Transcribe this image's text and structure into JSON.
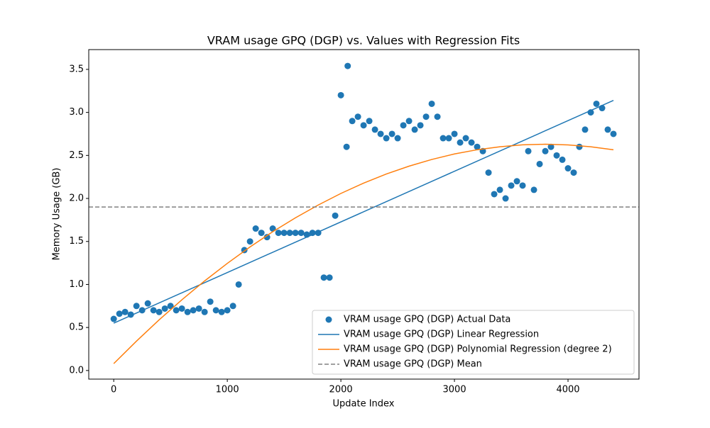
{
  "chart_data": {
    "type": "scatter",
    "title": "VRAM usage GPQ (DGP) vs. Values with Regression Fits",
    "x_label": "Update Index",
    "y_label": "Memory Usage (GB)",
    "xlim": [
      -220,
      4625
    ],
    "ylim": [
      -0.1,
      3.73
    ],
    "xticks": [
      0,
      1000,
      2000,
      3000,
      4000
    ],
    "yticks": [
      {
        "value": 0,
        "label": "0.0"
      },
      0.5,
      {
        "value": 1,
        "label": "1.0"
      },
      1.5,
      {
        "value": 2,
        "label": "2.0"
      },
      2.5,
      {
        "value": 3,
        "label": "3.0"
      },
      3.5
    ],
    "legend": "lower right",
    "series": [
      {
        "name": "VRAM usage GPQ (DGP) Actual Data",
        "type": "scatter",
        "color": "#1f77b4",
        "x": [
          0,
          50,
          100,
          150,
          200,
          250,
          300,
          350,
          400,
          450,
          500,
          550,
          600,
          650,
          700,
          750,
          800,
          850,
          900,
          950,
          1000,
          1050,
          1100,
          1150,
          1200,
          1250,
          1300,
          1350,
          1400,
          1450,
          1500,
          1550,
          1600,
          1650,
          1700,
          1750,
          1800,
          1850,
          1900,
          1950,
          2000,
          2050,
          2060,
          2100,
          2150,
          2200,
          2250,
          2300,
          2350,
          2400,
          2450,
          2500,
          2550,
          2600,
          2650,
          2700,
          2750,
          2800,
          2850,
          2900,
          2950,
          3000,
          3050,
          3100,
          3150,
          3200,
          3250,
          3300,
          3350,
          3400,
          3450,
          3500,
          3550,
          3600,
          3650,
          3700,
          3750,
          3800,
          3850,
          3900,
          3950,
          4000,
          4050,
          4100,
          4150,
          4200,
          4250,
          4300,
          4350,
          4400
        ],
        "values": [
          0.6,
          0.66,
          0.68,
          0.65,
          0.75,
          0.7,
          0.78,
          0.7,
          0.68,
          0.72,
          0.75,
          0.7,
          0.72,
          0.68,
          0.7,
          0.72,
          0.68,
          0.8,
          0.7,
          0.68,
          0.7,
          0.75,
          1.0,
          1.4,
          1.5,
          1.65,
          1.6,
          1.55,
          1.65,
          1.6,
          1.6,
          1.6,
          1.6,
          1.6,
          1.58,
          1.6,
          1.6,
          1.08,
          1.08,
          1.8,
          3.2,
          2.6,
          3.54,
          2.9,
          2.95,
          2.85,
          2.9,
          2.8,
          2.75,
          2.7,
          2.75,
          2.7,
          2.85,
          2.9,
          2.8,
          2.85,
          2.95,
          3.1,
          2.95,
          2.7,
          2.7,
          2.75,
          2.65,
          2.7,
          2.65,
          2.6,
          2.55,
          2.3,
          2.05,
          2.1,
          2.0,
          2.15,
          2.2,
          2.15,
          2.55,
          2.1,
          2.4,
          2.55,
          2.6,
          2.5,
          2.45,
          2.35,
          2.3,
          2.6,
          2.8,
          3.0,
          3.1,
          3.05,
          2.8,
          2.75
        ]
      },
      {
        "name": "VRAM usage GPQ (DGP) Linear Regression",
        "type": "line",
        "color": "#1f77b4",
        "x": [
          0,
          4400
        ],
        "values": [
          0.55,
          3.14
        ]
      },
      {
        "name": "VRAM usage GPQ (DGP) Polynomial Regression (degree 2)",
        "type": "line",
        "color": "#ff7f0e",
        "x": [
          0,
          200,
          400,
          600,
          800,
          1000,
          1200,
          1400,
          1600,
          1800,
          2000,
          2200,
          2400,
          2600,
          2800,
          3000,
          3200,
          3400,
          3600,
          3800,
          4000,
          4200,
          4400
        ],
        "values": [
          0.08,
          0.341,
          0.589,
          0.822,
          1.041,
          1.245,
          1.436,
          1.613,
          1.775,
          1.923,
          2.058,
          2.178,
          2.284,
          2.375,
          2.453,
          2.517,
          2.566,
          2.601,
          2.623,
          2.63,
          2.622,
          2.601,
          2.566
        ]
      },
      {
        "name": "VRAM usage GPQ (DGP) Mean",
        "type": "hline",
        "color": "#808080",
        "dashed": true,
        "value": 1.9
      }
    ]
  }
}
